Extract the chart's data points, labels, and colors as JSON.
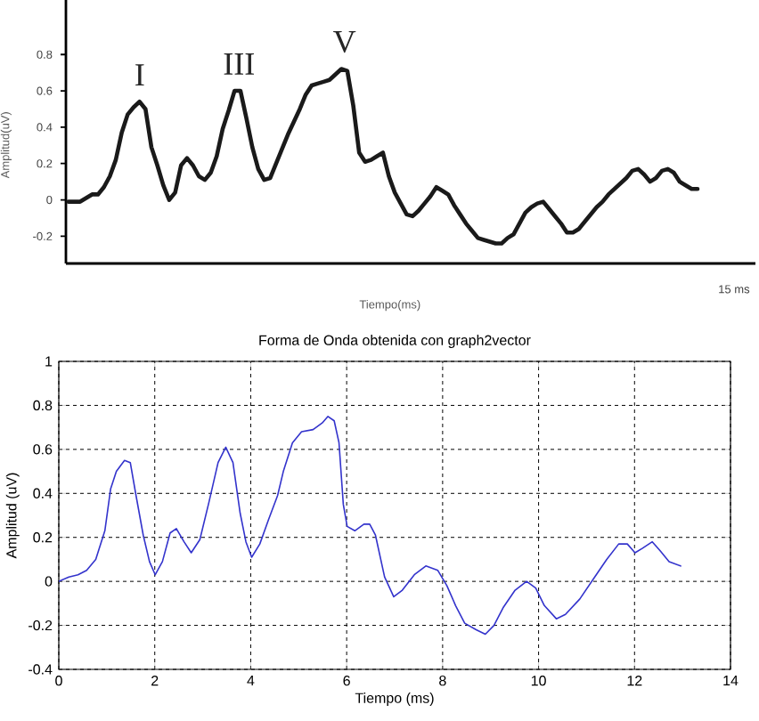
{
  "chart_data": [
    {
      "type": "line",
      "xlabel": "Tiempo(ms)",
      "ylabel": "Amplitud(uV)",
      "ylim": [
        -0.35,
        1.1
      ],
      "yticks": [
        -0.2,
        0,
        0.2,
        0.4,
        0.6,
        0.8
      ],
      "categories": [
        null,
        null,
        null,
        null,
        null,
        null,
        null,
        null,
        null,
        null,
        null,
        null,
        null,
        null,
        null,
        null,
        null,
        null,
        null,
        null,
        null,
        null,
        null,
        null,
        null,
        null,
        null,
        null,
        null,
        null,
        null,
        null,
        null,
        null,
        null,
        null,
        null,
        null,
        null,
        null,
        null,
        null,
        null,
        null,
        null,
        null,
        null,
        null,
        null,
        null,
        null,
        null,
        null,
        null,
        null,
        null,
        null,
        null,
        null,
        null,
        null,
        null,
        null,
        null,
        null,
        null,
        null,
        null,
        null,
        null,
        null,
        null,
        null,
        null,
        null,
        null,
        null,
        null,
        null,
        null,
        null,
        null,
        null,
        null,
        null,
        null,
        null,
        null,
        null,
        null,
        null,
        null,
        null,
        null,
        null,
        null,
        null,
        null,
        null,
        null,
        null,
        null,
        null,
        null,
        null,
        null,
        null
      ],
      "series": [
        {
          "color": "#1a1a1a",
          "values": [
            -0.01,
            -0.01,
            -0.01,
            0.01,
            0.03,
            0.03,
            0.07,
            0.13,
            0.22,
            0.37,
            0.47,
            0.51,
            0.54,
            0.5,
            0.29,
            0.19,
            0.08,
            0.0,
            0.04,
            0.19,
            0.23,
            0.19,
            0.13,
            0.11,
            0.15,
            0.24,
            0.39,
            0.49,
            0.6,
            0.6,
            0.45,
            0.29,
            0.17,
            0.11,
            0.12,
            0.2,
            0.28,
            0.36,
            0.43,
            0.5,
            0.58,
            0.63,
            0.64,
            0.65,
            0.66,
            0.69,
            0.72,
            0.71,
            0.52,
            0.26,
            0.21,
            0.22,
            0.24,
            0.26,
            0.13,
            0.04,
            -0.02,
            -0.08,
            -0.09,
            -0.06,
            -0.02,
            0.02,
            0.07,
            0.05,
            0.03,
            -0.03,
            -0.08,
            -0.13,
            -0.17,
            -0.21,
            -0.22,
            -0.23,
            -0.24,
            -0.24,
            -0.21,
            -0.19,
            -0.13,
            -0.07,
            -0.04,
            -0.02,
            -0.01,
            -0.05,
            -0.09,
            -0.13,
            -0.18,
            -0.18,
            -0.16,
            -0.12,
            -0.08,
            -0.04,
            -0.01,
            0.03,
            0.06,
            0.09,
            0.12,
            0.16,
            0.17,
            0.14,
            0.1,
            0.12,
            0.16,
            0.17,
            0.15,
            0.1,
            0.08,
            0.06,
            0.06
          ]
        }
      ],
      "annotations": [
        {
          "text": "I",
          "y": 0.54
        },
        {
          "text": "III",
          "y": 0.6
        },
        {
          "text": "V",
          "y": 0.72
        },
        "15 ms"
      ]
    },
    {
      "type": "line",
      "title": "Forma de Onda obtenida con graph2vector",
      "xlabel": "Tiempo (ms)",
      "ylabel": "Amplitud (uV)",
      "xlim": [
        0,
        14
      ],
      "ylim": [
        -0.4,
        1
      ],
      "xticks": [
        0,
        2,
        4,
        6,
        8,
        10,
        12,
        14
      ],
      "yticks": [
        -0.4,
        -0.2,
        0,
        0.2,
        0.4,
        0.6,
        0.8,
        1
      ],
      "grid": true,
      "x": [
        0,
        0.21,
        0.4,
        0.58,
        0.77,
        0.96,
        1.08,
        1.2,
        1.37,
        1.49,
        1.61,
        1.76,
        1.89,
        2.01,
        2.16,
        2.32,
        2.45,
        2.61,
        2.76,
        2.94,
        3.13,
        3.32,
        3.48,
        3.63,
        3.78,
        3.9,
        4.02,
        4.19,
        4.37,
        4.56,
        4.68,
        4.87,
        5.06,
        5.3,
        5.49,
        5.61,
        5.74,
        5.84,
        5.93,
        6.01,
        6.17,
        6.36,
        6.48,
        6.6,
        6.79,
        6.98,
        7.16,
        7.41,
        7.65,
        7.9,
        8.09,
        8.27,
        8.46,
        8.7,
        8.89,
        9.07,
        9.26,
        9.51,
        9.75,
        9.94,
        10.12,
        10.37,
        10.56,
        10.86,
        11.17,
        11.42,
        11.67,
        11.85,
        12.01,
        12.16,
        12.37,
        12.53,
        12.72,
        12.96
      ],
      "series": [
        {
          "color": "#3333cc",
          "values": [
            0,
            0.02,
            0.03,
            0.05,
            0.1,
            0.23,
            0.42,
            0.5,
            0.55,
            0.54,
            0.39,
            0.21,
            0.09,
            0.03,
            0.09,
            0.22,
            0.24,
            0.18,
            0.13,
            0.19,
            0.36,
            0.54,
            0.61,
            0.54,
            0.31,
            0.18,
            0.11,
            0.17,
            0.28,
            0.39,
            0.5,
            0.63,
            0.68,
            0.69,
            0.72,
            0.75,
            0.73,
            0.63,
            0.35,
            0.25,
            0.23,
            0.26,
            0.26,
            0.21,
            0.02,
            -0.07,
            -0.04,
            0.03,
            0.07,
            0.05,
            -0.02,
            -0.11,
            -0.19,
            -0.22,
            -0.24,
            -0.2,
            -0.12,
            -0.04,
            0,
            -0.03,
            -0.11,
            -0.17,
            -0.15,
            -0.08,
            0.02,
            0.1,
            0.17,
            0.17,
            0.13,
            0.15,
            0.18,
            0.14,
            0.09,
            0.07
          ]
        }
      ]
    }
  ]
}
